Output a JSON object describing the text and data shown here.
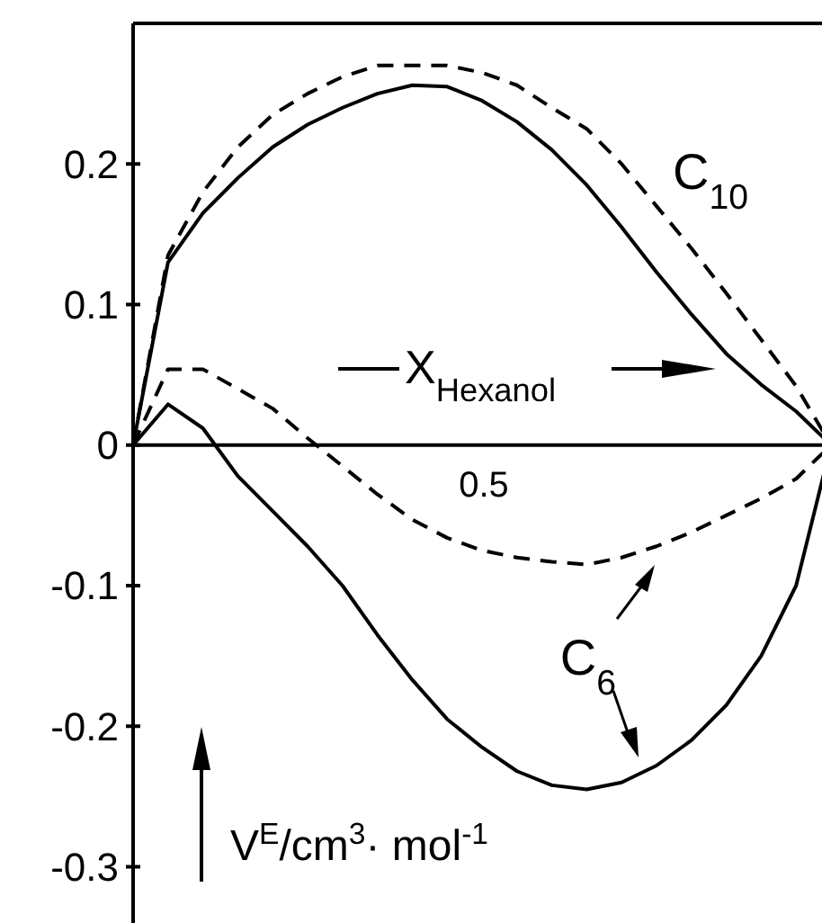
{
  "chart_data": {
    "type": "line",
    "xlabel": "X$_{Hexanol}$",
    "ylabel": "V$^{E}$/cm$^{3}$· mol$^{-1}$",
    "ylim": [
      -0.34,
      0.3
    ],
    "yticks": [
      0.2,
      0.1,
      0,
      -0.1,
      -0.2,
      -0.3
    ],
    "grid": false,
    "marker": "none",
    "categories": [
      null,
      null,
      null,
      null,
      null,
      null,
      null,
      null,
      null,
      null,
      null,
      null,
      null,
      null,
      null,
      null,
      null,
      null,
      null,
      null,
      null
    ],
    "series": [
      {
        "color": "#000000",
        "line_style": "solid",
        "values": [
          0,
          0.13,
          0.165,
          0.19,
          0.212,
          0.228,
          0.24,
          0.25,
          0.256,
          0.255,
          0.245,
          0.23,
          0.21,
          0.185,
          0.155,
          0.123,
          0.093,
          0.065,
          0.043,
          0.024,
          0
        ]
      },
      {
        "color": "#000000",
        "line_style": "dashed",
        "values": [
          0,
          0.135,
          0.18,
          0.212,
          0.235,
          0.25,
          0.262,
          0.27,
          0.27,
          0.27,
          0.265,
          0.256,
          0.24,
          0.225,
          0.2,
          0.17,
          0.14,
          0.108,
          0.075,
          0.042,
          0
        ]
      },
      {
        "color": "#000000",
        "line_style": "solid",
        "values": [
          0,
          0.029,
          0.012,
          -0.022,
          -0.047,
          -0.072,
          -0.1,
          -0.135,
          -0.167,
          -0.195,
          -0.215,
          -0.232,
          -0.242,
          -0.245,
          -0.24,
          -0.228,
          -0.21,
          -0.185,
          -0.15,
          -0.1,
          0
        ]
      },
      {
        "color": "#000000",
        "line_style": "dashed",
        "values": [
          0,
          0.054,
          0.054,
          0.04,
          0.026,
          0.005,
          -0.015,
          -0.035,
          -0.053,
          -0.066,
          -0.075,
          -0.08,
          -0.083,
          -0.085,
          -0.08,
          -0.072,
          -0.062,
          -0.05,
          -0.038,
          -0.024,
          0
        ]
      }
    ],
    "ref_lines": [
      {
        "axis": "y",
        "value": 0
      }
    ],
    "annotations": [
      "0.5",
      "C$_{10}$",
      "C$_{6}$"
    ]
  }
}
